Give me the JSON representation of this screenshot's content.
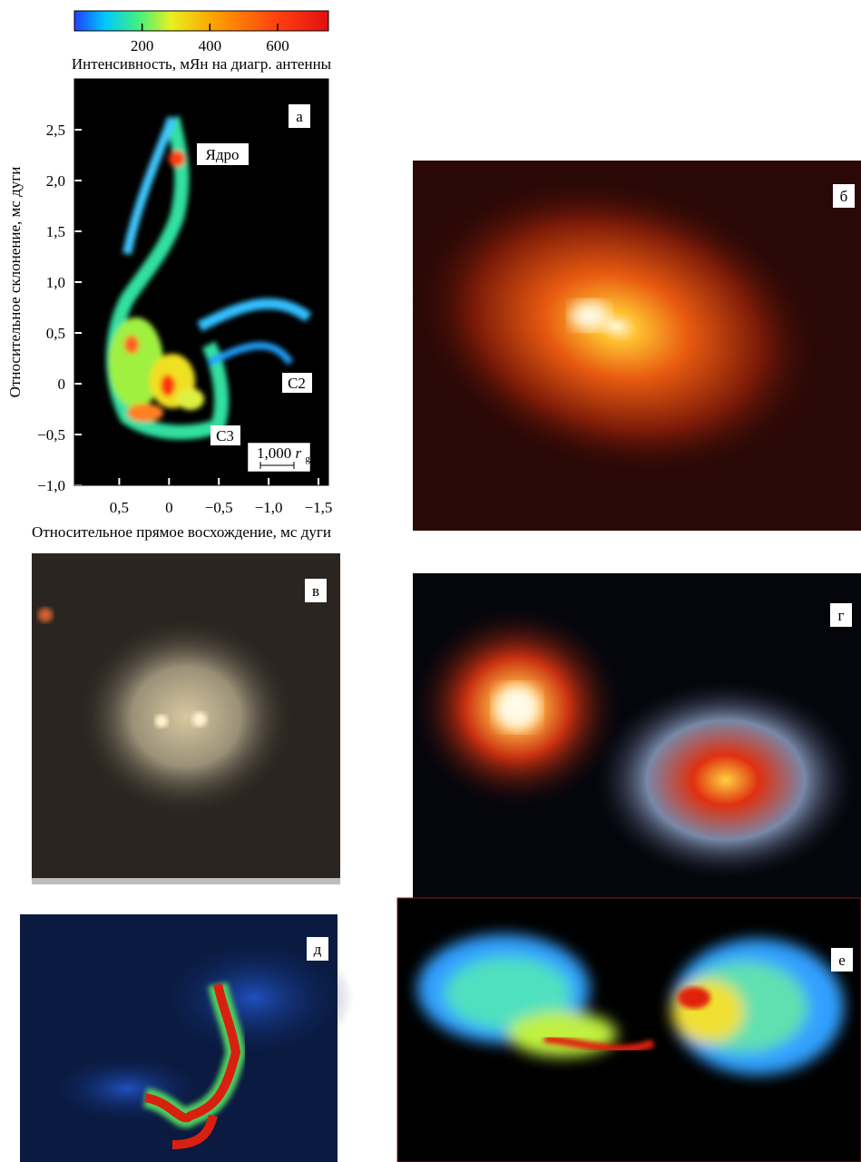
{
  "chart_data": {
    "type": "heatmap",
    "panel_label": "а",
    "colorbar_label": "Интенсивность, мЯн на диагр. антенны",
    "colorbar_lim": [
      0,
      750
    ],
    "colorbar_ticks": [
      200,
      400,
      600
    ],
    "xlabel": "Относительное прямое восхождение, мс дуги",
    "ylabel": "Относительное склонение, мс дуги",
    "xlim": [
      0.95,
      -1.6
    ],
    "xticks": [
      {
        "value": 0.5,
        "label": "0,5"
      },
      0,
      {
        "value": -0.5,
        "label": "−0,5"
      },
      {
        "value": -1.0,
        "label": "−1,0"
      },
      {
        "value": -1.5,
        "label": "−1,5"
      }
    ],
    "ylim": [
      -1.0,
      3.0
    ],
    "yticks": [
      {
        "value": -1.0,
        "label": "−1,0"
      },
      {
        "value": -0.5,
        "label": "−0,5"
      },
      0,
      {
        "value": 0.5,
        "label": "0,5"
      },
      {
        "value": 1.0,
        "label": "1,0"
      },
      {
        "value": 1.5,
        "label": "1,5"
      },
      {
        "value": 2.0,
        "label": "2,0"
      },
      {
        "value": 2.5,
        "label": "2,5"
      }
    ],
    "annotations": [
      "Ядро",
      "C2",
      "C3"
    ],
    "scale_bar": {
      "text": "1,000",
      "unit": "r",
      "subscript": "g"
    }
  },
  "panels": [
    {
      "label": "б"
    },
    {
      "label": "в"
    },
    {
      "label": "г"
    },
    {
      "label": "д"
    },
    {
      "label": "е"
    }
  ]
}
